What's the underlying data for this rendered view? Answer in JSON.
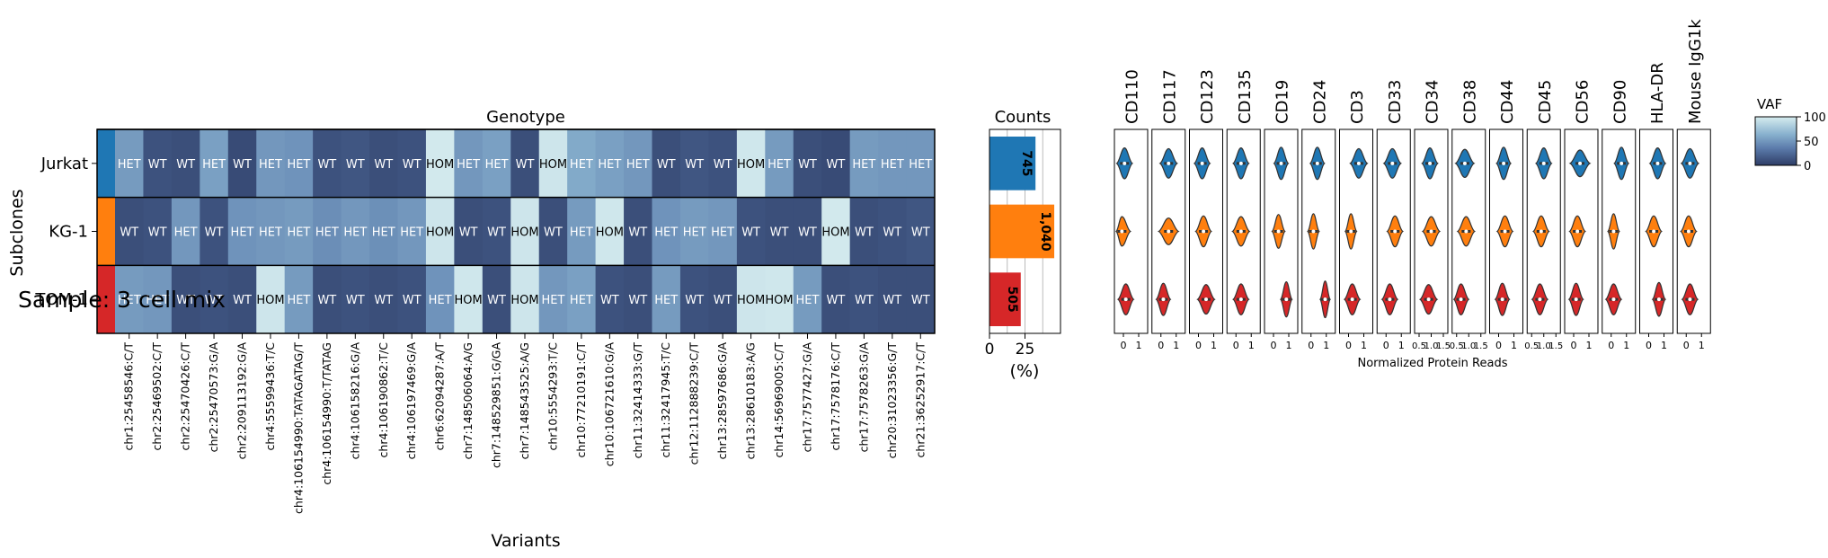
{
  "sample_label": "Sample: 3 cell mix",
  "colors": {
    "subclones": [
      "#1f77b4",
      "#ff7f0e",
      "#d62728"
    ],
    "vaf_scale": [
      "#2e3d66",
      "#5b7bab",
      "#8ab3cf",
      "#d6ecef"
    ],
    "axis": "#000000",
    "grid": "#cccccc"
  },
  "chart_data": [
    {
      "type": "heatmap",
      "title": "Genotype",
      "xlabel": "Variants",
      "ylabel": "Subclones",
      "rows": [
        "Jurkat",
        "KG-1",
        "TOM-1"
      ],
      "variants": [
        "chr1:25458546:C/T",
        "chr2:25469502:C/T",
        "chr2:25470426:C/T",
        "chr2:25470573:G/A",
        "chr2:209113192:G/A",
        "chr4:55599436:T/C",
        "chr4:106154990:TATAGATAG/T",
        "chr4:106154990:T/TATAG",
        "chr4:106158216:G/A",
        "chr4:106190862:T/C",
        "chr4:106197469:G/A",
        "chr6:62094287:A/T",
        "chr7:148506064:A/G",
        "chr7:148529851:G/GA",
        "chr7:148543525:A/G",
        "chr10:5554293:T/C",
        "chr10:77210191:C/T",
        "chr10:106721610:G/A",
        "chr11:32414333:G/T",
        "chr11:32417945:T/C",
        "chr12:112888239:C/T",
        "chr13:28597686:G/A",
        "chr13:28610183:A/G",
        "chr14:56969005:C/T",
        "chr17:7577427:G/A",
        "chr17:7578176:C/T",
        "chr17:7578263:G/A",
        "chr20:31023356:G/T",
        "chr21:36252917:C/T"
      ],
      "genotypes": [
        [
          "HET",
          "WT",
          "WT",
          "HET",
          "WT",
          "HET",
          "HET",
          "WT",
          "WT",
          "WT",
          "WT",
          "HOM",
          "HET",
          "HET",
          "WT",
          "HOM",
          "HET",
          "HET",
          "HET",
          "WT",
          "WT",
          "WT",
          "HOM",
          "HET",
          "WT",
          "WT",
          "HET",
          "HET",
          "HET"
        ],
        [
          "WT",
          "WT",
          "HET",
          "WT",
          "HET",
          "HET",
          "HET",
          "HET",
          "HET",
          "HET",
          "HET",
          "HOM",
          "WT",
          "WT",
          "HOM",
          "WT",
          "HET",
          "HOM",
          "WT",
          "HET",
          "HET",
          "HET",
          "WT",
          "WT",
          "WT",
          "HOM",
          "WT",
          "WT",
          "WT"
        ],
        [
          "HET",
          "HET",
          "WT",
          "WT",
          "WT",
          "HOM",
          "HET",
          "WT",
          "WT",
          "WT",
          "WT",
          "HET",
          "HOM",
          "WT",
          "HOM",
          "HET",
          "HET",
          "WT",
          "WT",
          "HET",
          "WT",
          "WT",
          "HOM",
          "HOM",
          "HET",
          "WT",
          "WT",
          "WT",
          "WT"
        ]
      ],
      "vaf": [
        [
          52,
          12,
          10,
          55,
          8,
          50,
          48,
          12,
          14,
          10,
          12,
          98,
          50,
          55,
          10,
          96,
          60,
          55,
          50,
          10,
          14,
          12,
          97,
          52,
          10,
          8,
          52,
          50,
          50
        ],
        [
          10,
          12,
          50,
          12,
          48,
          50,
          52,
          45,
          50,
          46,
          50,
          96,
          10,
          12,
          96,
          10,
          52,
          97,
          10,
          48,
          52,
          50,
          12,
          10,
          10,
          98,
          10,
          12,
          14
        ],
        [
          52,
          50,
          10,
          12,
          10,
          96,
          52,
          10,
          12,
          10,
          12,
          48,
          97,
          10,
          96,
          50,
          55,
          12,
          10,
          52,
          12,
          10,
          96,
          97,
          52,
          10,
          12,
          10,
          10
        ]
      ]
    },
    {
      "type": "bar",
      "title": "Counts",
      "xlabel": "(%)",
      "categories": [
        "Jurkat",
        "KG-1",
        "TOM-1"
      ],
      "values": [
        32.4,
        45.6,
        22.0
      ],
      "labels": [
        "745",
        "1,040",
        "505"
      ],
      "xticks": [
        "0",
        "25"
      ],
      "xlim": [
        0,
        50
      ]
    },
    {
      "type": "violin",
      "xlabel": "Normalized Protein Reads",
      "proteins": [
        "CD110",
        "CD117",
        "CD123",
        "CD135",
        "CD19",
        "CD24",
        "CD3",
        "CD33",
        "CD34",
        "CD38",
        "CD44",
        "CD45",
        "CD56",
        "CD90",
        "HLA-DR",
        "Mouse IgG1k"
      ],
      "tick_labels": [
        [
          "0",
          "1"
        ],
        [
          "0",
          "1"
        ],
        [
          "0",
          "1"
        ],
        [
          "0",
          "1"
        ],
        [
          "0",
          "1"
        ],
        [
          "0",
          "1"
        ],
        [
          "0",
          "1"
        ],
        [
          "0",
          "1"
        ],
        [
          "0.5",
          "1.0",
          "1.5"
        ],
        [
          "0.5",
          "1.0",
          "1.5"
        ],
        [
          "0",
          "1"
        ],
        [
          "0.5",
          "1.0",
          "1.5"
        ],
        [
          "0",
          "1"
        ],
        [
          "0",
          "1"
        ],
        [
          "0",
          "1"
        ],
        [
          "0",
          "1"
        ]
      ],
      "medians": [
        [
          0.25,
          0.5,
          0.35,
          0.4,
          0.5,
          0.45,
          0.6,
          0.45,
          0.45,
          0.35,
          0.4,
          0.5,
          0.45,
          0.6,
          0.55,
          0.35
        ],
        [
          0.15,
          0.5,
          0.4,
          0.4,
          0.4,
          0.3,
          0.3,
          0.55,
          0.5,
          0.4,
          0.45,
          0.4,
          0.35,
          0.3,
          0.4,
          0.3
        ],
        [
          0.3,
          0.3,
          0.5,
          0.4,
          0.7,
          0.75,
          0.35,
          0.35,
          0.4,
          0.2,
          0.35,
          0.35,
          0.3,
          0.3,
          0.6,
          0.35
        ]
      ],
      "spreads": [
        [
          0.3,
          0.35,
          0.3,
          0.3,
          0.25,
          0.25,
          0.35,
          0.35,
          0.3,
          0.4,
          0.25,
          0.3,
          0.45,
          0.25,
          0.3,
          0.35
        ],
        [
          0.35,
          0.45,
          0.3,
          0.35,
          0.2,
          0.15,
          0.15,
          0.3,
          0.35,
          0.35,
          0.3,
          0.3,
          0.3,
          0.15,
          0.3,
          0.3
        ],
        [
          0.3,
          0.25,
          0.35,
          0.3,
          0.15,
          0.1,
          0.3,
          0.3,
          0.35,
          0.3,
          0.25,
          0.3,
          0.25,
          0.3,
          0.2,
          0.3
        ]
      ]
    },
    {
      "type": "colorbar",
      "title": "VAF",
      "ticks": [
        "100",
        "50",
        "0"
      ],
      "range": [
        0,
        100
      ]
    }
  ]
}
